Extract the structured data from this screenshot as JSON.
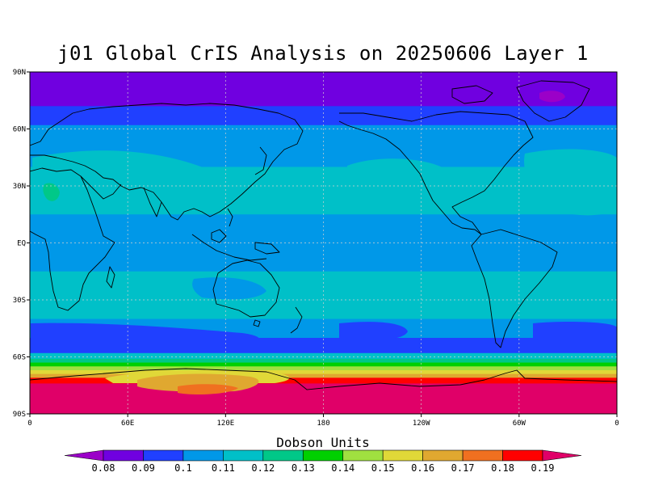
{
  "title": "j01 Global CrIS Analysis on 20250606 Layer 1",
  "map": {
    "projection": "equirectangular",
    "lon_range": [
      0,
      360
    ],
    "lat_range": [
      -90,
      90
    ],
    "lat_ticks": [
      {
        "value": 90,
        "label": "90N"
      },
      {
        "value": 60,
        "label": "60N"
      },
      {
        "value": 30,
        "label": "30N"
      },
      {
        "value": 0,
        "label": "EQ"
      },
      {
        "value": -30,
        "label": "30S"
      },
      {
        "value": -60,
        "label": "60S"
      },
      {
        "value": -90,
        "label": "90S"
      }
    ],
    "lon_ticks": [
      {
        "value": 0,
        "label": "0"
      },
      {
        "value": 60,
        "label": "60E"
      },
      {
        "value": 120,
        "label": "120E"
      },
      {
        "value": 180,
        "label": "180"
      },
      {
        "value": 240,
        "label": "120W"
      },
      {
        "value": 300,
        "label": "60W"
      },
      {
        "value": 360,
        "label": "0"
      }
    ],
    "grid": "dashed",
    "coastlines": true
  },
  "colorbar": {
    "title": "Dobson Units",
    "levels": [
      "0.08",
      "0.09",
      "0.1",
      "0.11",
      "0.12",
      "0.13",
      "0.14",
      "0.15",
      "0.16",
      "0.17",
      "0.18",
      "0.19"
    ],
    "colors": [
      "#9b00c8",
      "#7000e0",
      "#2040ff",
      "#0098e8",
      "#00c0c8",
      "#00c888",
      "#00d000",
      "#a0e040",
      "#e0d838",
      "#e0a830",
      "#f07020",
      "#ff0000",
      "#e00068"
    ],
    "extend": "both"
  },
  "chart_data": {
    "type": "heatmap",
    "title": "j01 Global CrIS Analysis on 20250606 Layer 1",
    "units": "Dobson Units",
    "zonal_bands": [
      {
        "lat": [
          90,
          72
        ],
        "value": 0.085
      },
      {
        "lat": [
          72,
          62
        ],
        "value": 0.095
      },
      {
        "lat": [
          62,
          40
        ],
        "value": 0.105
      },
      {
        "lat": [
          40,
          15
        ],
        "value": 0.115
      },
      {
        "lat": [
          15,
          -15
        ],
        "value": 0.105
      },
      {
        "lat": [
          -15,
          -40
        ],
        "value": 0.115
      },
      {
        "lat": [
          -40,
          -50
        ],
        "value": 0.105
      },
      {
        "lat": [
          -50,
          -58
        ],
        "value": 0.095
      },
      {
        "lat": [
          -58,
          -61
        ],
        "value": 0.115
      },
      {
        "lat": [
          -61,
          -63
        ],
        "value": 0.125
      },
      {
        "lat": [
          -63,
          -65
        ],
        "value": 0.135
      },
      {
        "lat": [
          -65,
          -67
        ],
        "value": 0.145
      },
      {
        "lat": [
          -67,
          -69
        ],
        "value": 0.155
      },
      {
        "lat": [
          -69,
          -71
        ],
        "value": 0.165
      },
      {
        "lat": [
          -71,
          -74
        ],
        "value": 0.18
      },
      {
        "lat": [
          -74,
          -90
        ],
        "value": 0.195
      }
    ]
  }
}
